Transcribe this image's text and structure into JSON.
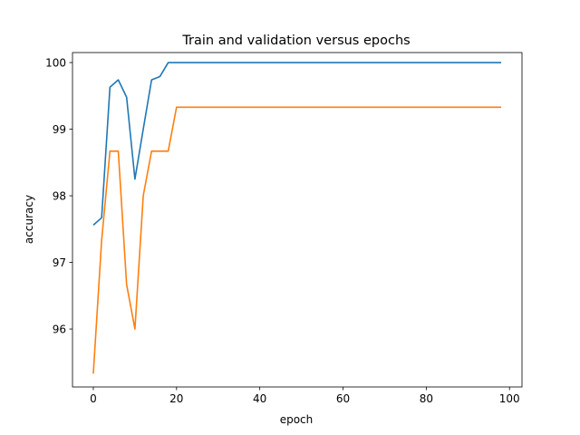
{
  "chart_data": {
    "type": "line",
    "title": "Train and validation versus epochs",
    "xlabel": "epoch",
    "ylabel": "accuracy",
    "xlim": [
      -5,
      103
    ],
    "ylim": [
      95.13,
      100.15
    ],
    "xticks": [
      0,
      20,
      40,
      60,
      80,
      100
    ],
    "yticks": [
      96,
      97,
      98,
      99,
      100
    ],
    "grid": false,
    "legend": "none",
    "series": [
      {
        "color": "#1f77b4",
        "x": [
          0,
          2,
          4,
          6,
          8,
          10,
          12,
          14,
          16,
          18,
          20,
          30,
          40,
          50,
          60,
          70,
          80,
          90,
          98
        ],
        "y": [
          97.56,
          97.67,
          99.63,
          99.74,
          99.48,
          98.25,
          99.0,
          99.74,
          99.79,
          100.0,
          100.0,
          100.0,
          100.0,
          100.0,
          100.0,
          100.0,
          100.0,
          100.0,
          100.0
        ]
      },
      {
        "color": "#ff7f0e",
        "x": [
          0,
          2,
          4,
          6,
          8,
          10,
          12,
          14,
          16,
          18,
          20,
          30,
          40,
          50,
          60,
          70,
          80,
          90,
          98
        ],
        "y": [
          95.33,
          97.33,
          98.67,
          98.67,
          96.67,
          96.0,
          98.0,
          98.67,
          98.67,
          98.67,
          99.33,
          99.33,
          99.33,
          99.33,
          99.33,
          99.33,
          99.33,
          99.33,
          99.33
        ]
      }
    ]
  }
}
